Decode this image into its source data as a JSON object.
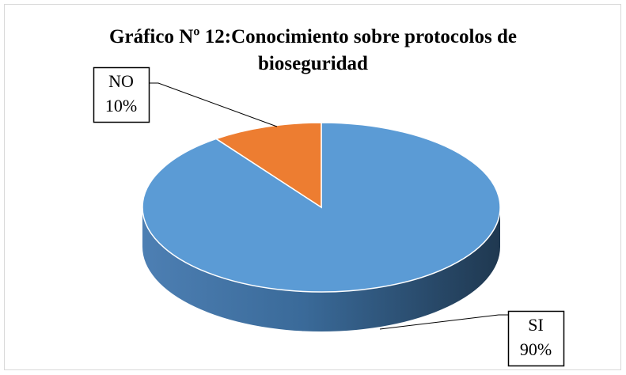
{
  "chart_data": {
    "type": "pie3d",
    "title": "Gráfico Nº 12:Conocimiento sobre protocolos de bioseguridad",
    "categories": [
      "SI",
      "NO"
    ],
    "values": [
      90,
      10
    ],
    "value_labels": [
      "90%",
      "10%"
    ],
    "colors": [
      "#5b9bd5",
      "#ed7d31"
    ]
  }
}
